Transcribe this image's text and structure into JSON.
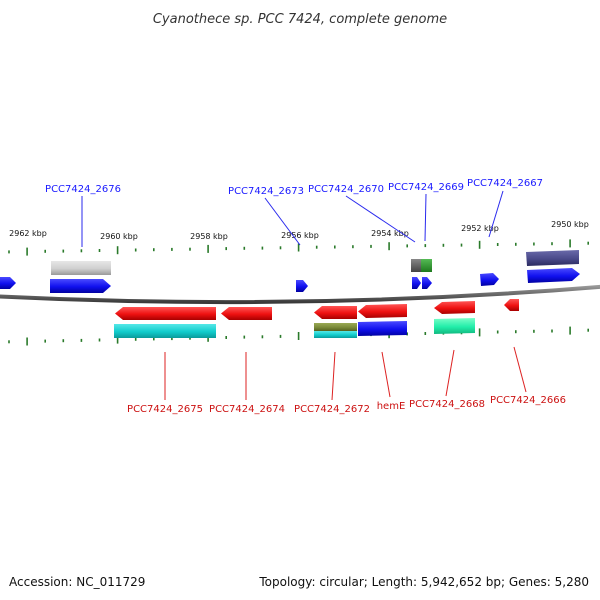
{
  "title": "Cyanothece sp. PCC 7424, complete genome",
  "footer": {
    "accession": "Accession: NC_011729",
    "summary": "Topology: circular; Length: 5,942,652 bp; Genes: 5,280"
  },
  "colors": {
    "plus_label": "#1a1aff",
    "minus_label": "#cc1111",
    "tick": "#2a7a2a",
    "backbone": "#666666"
  },
  "scale": {
    "unit": "kbp",
    "labels": [
      "2962 kbp",
      "2960 kbp",
      "2958 kbp",
      "2956 kbp",
      "2954 kbp",
      "2952 kbp",
      "2950 kbp"
    ]
  },
  "genes_top": [
    {
      "name": "PCC7424_2676"
    },
    {
      "name": "PCC7424_2673"
    },
    {
      "name": "PCC7424_2670"
    },
    {
      "name": "PCC7424_2669"
    },
    {
      "name": "PCC7424_2667"
    }
  ],
  "genes_bottom": [
    {
      "name": "PCC7424_2675"
    },
    {
      "name": "PCC7424_2674"
    },
    {
      "name": "PCC7424_2672"
    },
    {
      "name": "hemE"
    },
    {
      "name": "PCC7424_2668"
    },
    {
      "name": "PCC7424_2666"
    }
  ]
}
